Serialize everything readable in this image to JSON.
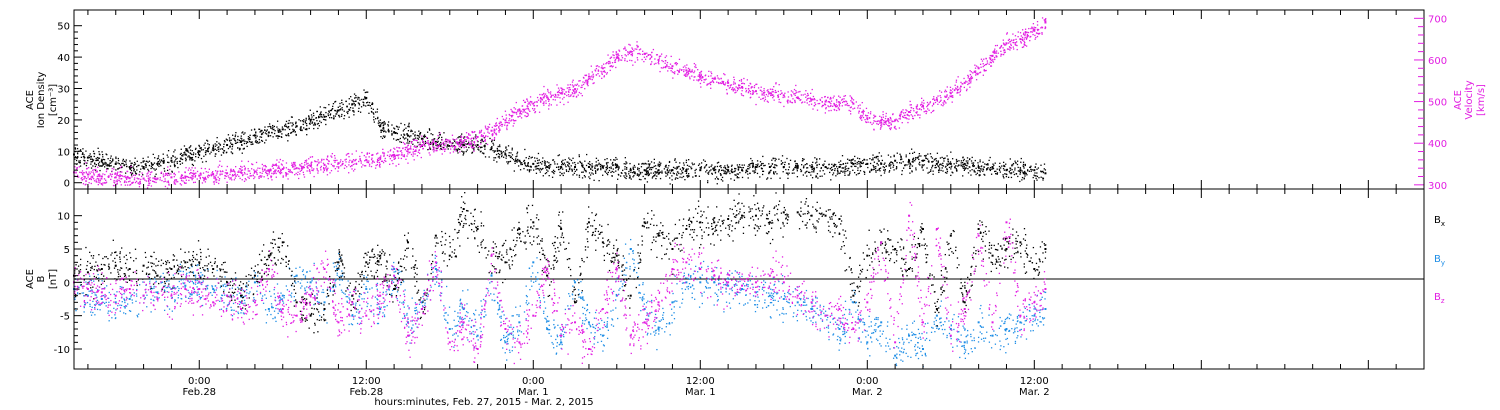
{
  "colors": {
    "black": "#000000",
    "magenta": "#e21ee2",
    "blue": "#1f8ee6",
    "background": "#ffffff"
  },
  "chart_data": [
    {
      "type": "scatter",
      "panel": "top",
      "xlabel": "hours:minutes, Feb. 27, 2015 - Mar. 2, 2015",
      "x_unit": "hours since Feb. 27, 2015 00:00",
      "xlim": [
        15,
        112
      ],
      "xticks": [
        {
          "x": 24,
          "label": "0:00",
          "sublabel": "Feb.28"
        },
        {
          "x": 36,
          "label": "12:00",
          "sublabel": "Feb.28"
        },
        {
          "x": 48,
          "label": "0:00",
          "sublabel": "Mar. 1"
        },
        {
          "x": 60,
          "label": "12:00",
          "sublabel": "Mar. 1"
        },
        {
          "x": 72,
          "label": "0:00",
          "sublabel": "Mar. 2"
        },
        {
          "x": 84,
          "label": "12:00",
          "sublabel": "Mar. 2"
        }
      ],
      "left_axis": {
        "label_lines": [
          "ACE",
          "Ion Density",
          "[cm⁻³]"
        ],
        "ylim": [
          -2,
          55
        ],
        "ticks": [
          "0",
          "10",
          "20",
          "30",
          "40",
          "50"
        ]
      },
      "right_axis": {
        "label_lines": [
          "ACE",
          "Velocity",
          "[km/s]"
        ],
        "ylim": [
          290,
          720
        ],
        "ticks": [
          "300",
          "400",
          "500",
          "600",
          "700"
        ]
      },
      "series": [
        {
          "name": "Ion Density",
          "axis": "left",
          "color": "#000000",
          "x": [
            15,
            16,
            17,
            18,
            19,
            20,
            21,
            22,
            23,
            24,
            25,
            26,
            27,
            28,
            29,
            30,
            31,
            32,
            33,
            34,
            35,
            36,
            37,
            38,
            39,
            40,
            41,
            42,
            43,
            44,
            45,
            46,
            47,
            48,
            49,
            50,
            51,
            52,
            53,
            54,
            55,
            56,
            57,
            58,
            59,
            60,
            61,
            62,
            63,
            64,
            65,
            66,
            67,
            68,
            69,
            70,
            71,
            72,
            73,
            74,
            75,
            76,
            77,
            78,
            79,
            80,
            81,
            82,
            83,
            84,
            84.8
          ],
          "y": [
            9,
            8,
            7,
            6,
            5,
            5,
            6,
            7,
            9,
            10,
            11,
            12,
            13,
            15,
            16,
            17,
            18,
            20,
            21,
            23,
            25,
            27,
            18,
            16,
            15,
            14,
            13,
            13,
            12,
            12,
            11,
            9,
            7,
            6,
            5,
            5,
            5,
            5,
            5,
            5,
            4,
            4,
            4,
            4,
            4,
            4,
            4,
            4,
            4,
            5,
            5,
            5,
            5,
            5,
            5,
            5,
            6,
            6,
            6,
            7,
            7,
            7,
            6,
            6,
            6,
            5,
            5,
            4,
            4,
            4,
            3
          ]
        },
        {
          "name": "Velocity",
          "axis": "right",
          "color": "#e21ee2",
          "x": [
            15,
            16,
            17,
            18,
            19,
            20,
            21,
            22,
            23,
            24,
            25,
            26,
            27,
            28,
            29,
            30,
            31,
            32,
            33,
            34,
            35,
            36,
            37,
            38,
            39,
            40,
            41,
            42,
            43,
            44,
            45,
            46,
            47,
            48,
            49,
            50,
            51,
            52,
            53,
            54,
            55,
            56,
            57,
            58,
            59,
            60,
            61,
            62,
            63,
            64,
            65,
            66,
            67,
            68,
            69,
            70,
            71,
            72,
            73,
            74,
            75,
            76,
            77,
            78,
            79,
            80,
            81,
            82,
            83,
            84,
            84.8
          ],
          "y": [
            330,
            325,
            320,
            318,
            316,
            315,
            315,
            318,
            320,
            322,
            325,
            328,
            330,
            332,
            335,
            338,
            340,
            345,
            348,
            352,
            356,
            360,
            365,
            372,
            385,
            395,
            400,
            402,
            405,
            415,
            430,
            455,
            480,
            495,
            510,
            520,
            530,
            560,
            580,
            605,
            620,
            615,
            600,
            585,
            575,
            560,
            555,
            545,
            535,
            525,
            520,
            515,
            510,
            505,
            500,
            498,
            495,
            460,
            450,
            455,
            475,
            490,
            505,
            520,
            545,
            580,
            610,
            640,
            650,
            670,
            690
          ]
        }
      ]
    },
    {
      "type": "scatter",
      "panel": "bottom",
      "xlabel": "hours:minutes, Feb. 27, 2015 - Mar. 2, 2015",
      "xlim": [
        15,
        112
      ],
      "left_axis": {
        "label_lines": [
          "ACE",
          "B",
          "[nT]"
        ],
        "ylim": [
          -13,
          14
        ],
        "ticks": [
          "-10",
          "-5",
          "0",
          "5",
          "10"
        ]
      },
      "series": [
        {
          "name": "Bx",
          "label_main": "B",
          "label_sub": "x",
          "color": "#000000",
          "x": [
            15,
            16,
            17,
            18,
            19,
            20,
            21,
            22,
            23,
            24,
            25,
            26,
            27,
            28,
            29,
            30,
            31,
            32,
            33,
            34,
            35,
            36,
            37,
            38,
            39,
            40,
            41,
            42,
            43,
            44,
            45,
            46,
            47,
            48,
            49,
            50,
            51,
            52,
            53,
            54,
            55,
            56,
            57,
            58,
            59,
            60,
            61,
            62,
            63,
            64,
            65,
            66,
            67,
            68,
            69,
            70,
            71,
            72,
            73,
            74,
            75,
            76,
            77,
            78,
            79,
            80,
            81,
            82,
            83,
            84,
            84.8
          ],
          "y": [
            1,
            1.5,
            2,
            2.5,
            2,
            2.5,
            1,
            2,
            3,
            3,
            2,
            0,
            -2,
            1,
            4,
            6,
            -3,
            -5,
            -4,
            3,
            -2,
            3,
            4,
            -1,
            6,
            -4,
            7,
            4,
            11,
            8,
            4,
            3,
            8,
            9,
            1,
            8,
            -3,
            9,
            6,
            4,
            -2,
            9,
            7,
            5,
            8,
            9,
            9,
            9.5,
            10,
            10,
            9,
            10.5,
            10.5,
            10,
            10,
            9.5,
            -2,
            4,
            6,
            5,
            2,
            8,
            -4,
            7,
            -3,
            8,
            4,
            5,
            6,
            2,
            5
          ]
        },
        {
          "name": "By",
          "label_main": "B",
          "label_sub": "y",
          "color": "#1f8ee6",
          "x": [
            15,
            16,
            17,
            18,
            19,
            20,
            21,
            22,
            23,
            24,
            25,
            26,
            27,
            28,
            29,
            30,
            31,
            32,
            33,
            34,
            35,
            36,
            37,
            38,
            39,
            40,
            41,
            42,
            43,
            44,
            45,
            46,
            47,
            48,
            49,
            50,
            51,
            52,
            53,
            54,
            55,
            56,
            57,
            58,
            59,
            60,
            61,
            62,
            63,
            64,
            65,
            66,
            67,
            68,
            69,
            70,
            71,
            72,
            73,
            74,
            75,
            76,
            77,
            78,
            79,
            80,
            81,
            82,
            83,
            84,
            84.8
          ],
          "y": [
            -1,
            -2,
            -2.5,
            -3,
            -2.5,
            -2,
            -1.5,
            -1,
            -0.5,
            0,
            -1,
            -2,
            -3,
            0,
            -4,
            -2,
            1,
            0,
            -3,
            2,
            -5,
            -1,
            -4,
            2,
            -6,
            -3,
            2,
            -7,
            -4,
            -8,
            1,
            -9,
            -6,
            3,
            -7,
            -9,
            0,
            -6,
            -8,
            -2,
            5,
            -4,
            -7,
            -3,
            0,
            0,
            0,
            -0.5,
            -1,
            -1.5,
            -2,
            -2.5,
            -3,
            -4,
            -5,
            -7,
            -3,
            -9,
            -6,
            -11,
            -8,
            -10,
            -5,
            -7,
            -9,
            -6,
            -8,
            -7,
            -6,
            -5,
            -4
          ]
        },
        {
          "name": "Bz",
          "label_main": "B",
          "label_sub": "z",
          "color": "#e21ee2",
          "x": [
            15,
            16,
            17,
            18,
            19,
            20,
            21,
            22,
            23,
            24,
            25,
            26,
            27,
            28,
            29,
            30,
            31,
            32,
            33,
            34,
            35,
            36,
            37,
            38,
            39,
            40,
            41,
            42,
            43,
            44,
            45,
            46,
            47,
            48,
            49,
            50,
            51,
            52,
            53,
            54,
            55,
            56,
            57,
            58,
            59,
            60,
            61,
            62,
            63,
            64,
            65,
            66,
            67,
            68,
            69,
            70,
            71,
            72,
            73,
            74,
            75,
            76,
            77,
            78,
            79,
            80,
            81,
            82,
            83,
            84,
            84.8
          ],
          "y": [
            0,
            -1,
            -1.5,
            -2,
            -1,
            -2,
            -2.5,
            -2,
            -1,
            -1,
            -3,
            -2,
            -4,
            -3,
            2,
            -4,
            -5,
            -2,
            2,
            -6,
            -3,
            -5,
            -2,
            1,
            -8,
            -4,
            3,
            -9,
            -6,
            -10,
            4,
            -7,
            -9,
            -5,
            2,
            -8,
            -6,
            -10,
            -4,
            2,
            -8,
            -6,
            -3,
            2,
            3,
            2,
            1,
            0,
            -0.5,
            0,
            1,
            0,
            -2,
            -3,
            -5,
            -4,
            -7,
            -3,
            6,
            -9,
            10,
            -6,
            8,
            -8,
            -4,
            7,
            -6,
            9,
            -5,
            -3,
            -1
          ]
        }
      ]
    }
  ]
}
